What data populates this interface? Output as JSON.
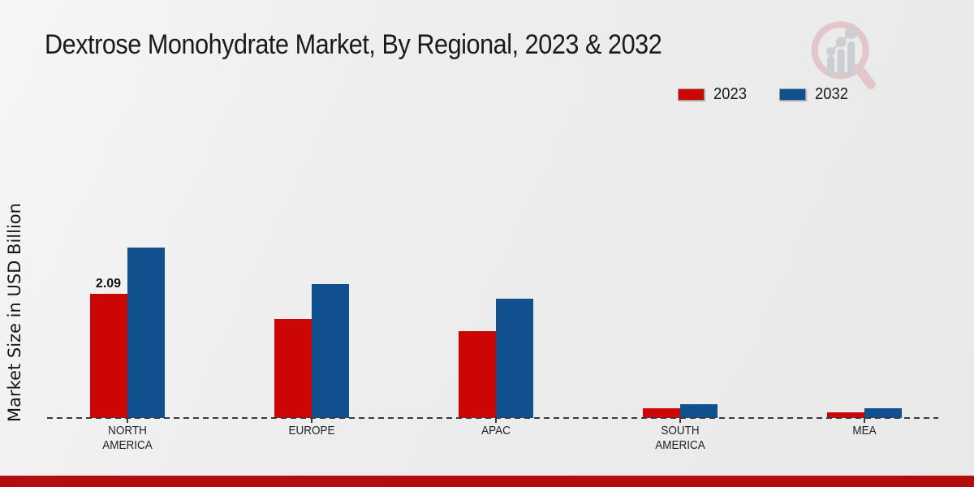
{
  "title": "Dextrose Monohydrate Market, By Regional, 2023 & 2032",
  "ylabel": "Market Size in USD Billion",
  "footer": {
    "bar_color": "#b50d0d"
  },
  "watermark": {
    "icon": "magnifier-bar-chart-logo",
    "ring_color": "#d9abb0",
    "bars_color": "#b4b7bf"
  },
  "chart_data": {
    "type": "bar",
    "title": "Dextrose Monohydrate Market, By Regional, 2023 & 2032",
    "xlabel": "",
    "ylabel": "Market Size in USD Billion",
    "categories": [
      "NORTH AMERICA",
      "EUROPE",
      "APAC",
      "SOUTH AMERICA",
      "MEA"
    ],
    "series": [
      {
        "name": "2023",
        "color": "#cc0605",
        "values": [
          2.09,
          1.66,
          1.46,
          0.17,
          0.1
        ]
      },
      {
        "name": "2032",
        "color": "#11508f",
        "values": [
          2.87,
          2.25,
          2.01,
          0.23,
          0.16
        ]
      }
    ],
    "data_labels": [
      {
        "series_index": 0,
        "category_index": 0,
        "text": "2.09"
      }
    ],
    "ylim": [
      0,
      3.0
    ],
    "grid": false,
    "baseline_style": "dashed",
    "legend_position": "top-right"
  }
}
